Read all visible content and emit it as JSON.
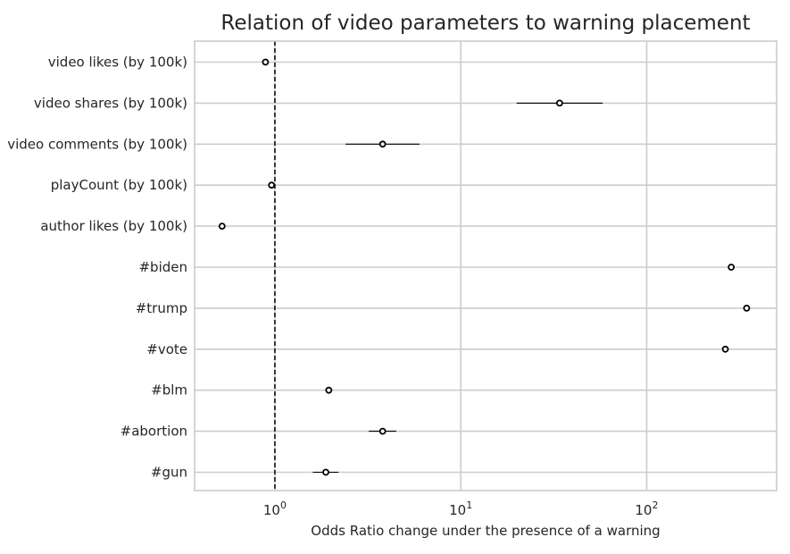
{
  "chart_data": {
    "type": "scatter",
    "title": "Relation of video parameters to warning placement",
    "xlabel": "Odds Ratio change under the presence of a warning",
    "ylabel": "",
    "x_scale": "log",
    "x_tick_base": "10",
    "x_ticks": [
      {
        "value": 1,
        "exponent": "0"
      },
      {
        "value": 10,
        "exponent": "1"
      },
      {
        "value": 100,
        "exponent": "2"
      }
    ],
    "xlim": [
      0.37,
      500
    ],
    "reference_line": {
      "x": 1,
      "style": "dashed"
    },
    "grid": true,
    "legend": "none",
    "marker_color": "#000000",
    "grid_color": "#cccccc",
    "categories": [
      "video likes (by 100k)",
      "video shares (by 100k)",
      "video comments (by 100k)",
      "playCount (by 100k)",
      "author likes (by 100k)",
      "#biden",
      "#trump",
      "#vote",
      "#blm",
      "#abortion",
      "#gun"
    ],
    "points": [
      {
        "label": "video likes (by 100k)",
        "or": 0.89,
        "lo": 0.86,
        "hi": 0.92
      },
      {
        "label": "video shares (by 100k)",
        "or": 34,
        "lo": 20,
        "hi": 58
      },
      {
        "label": "video comments (by 100k)",
        "or": 3.8,
        "lo": 2.4,
        "hi": 6.0
      },
      {
        "label": "playCount (by 100k)",
        "or": 0.96,
        "lo": 0.95,
        "hi": 0.97
      },
      {
        "label": "author likes (by 100k)",
        "or": 0.52,
        "lo": 0.51,
        "hi": 0.53
      },
      {
        "label": "#biden",
        "or": 285,
        "lo": 280,
        "hi": 290
      },
      {
        "label": "#trump",
        "or": 345,
        "lo": 340,
        "hi": 350
      },
      {
        "label": "#vote",
        "or": 265,
        "lo": 260,
        "hi": 270
      },
      {
        "label": "#blm",
        "or": 1.95,
        "lo": 1.88,
        "hi": 2.02
      },
      {
        "label": "#abortion",
        "or": 3.8,
        "lo": 3.2,
        "hi": 4.5
      },
      {
        "label": "#gun",
        "or": 1.88,
        "lo": 1.6,
        "hi": 2.2
      }
    ]
  }
}
